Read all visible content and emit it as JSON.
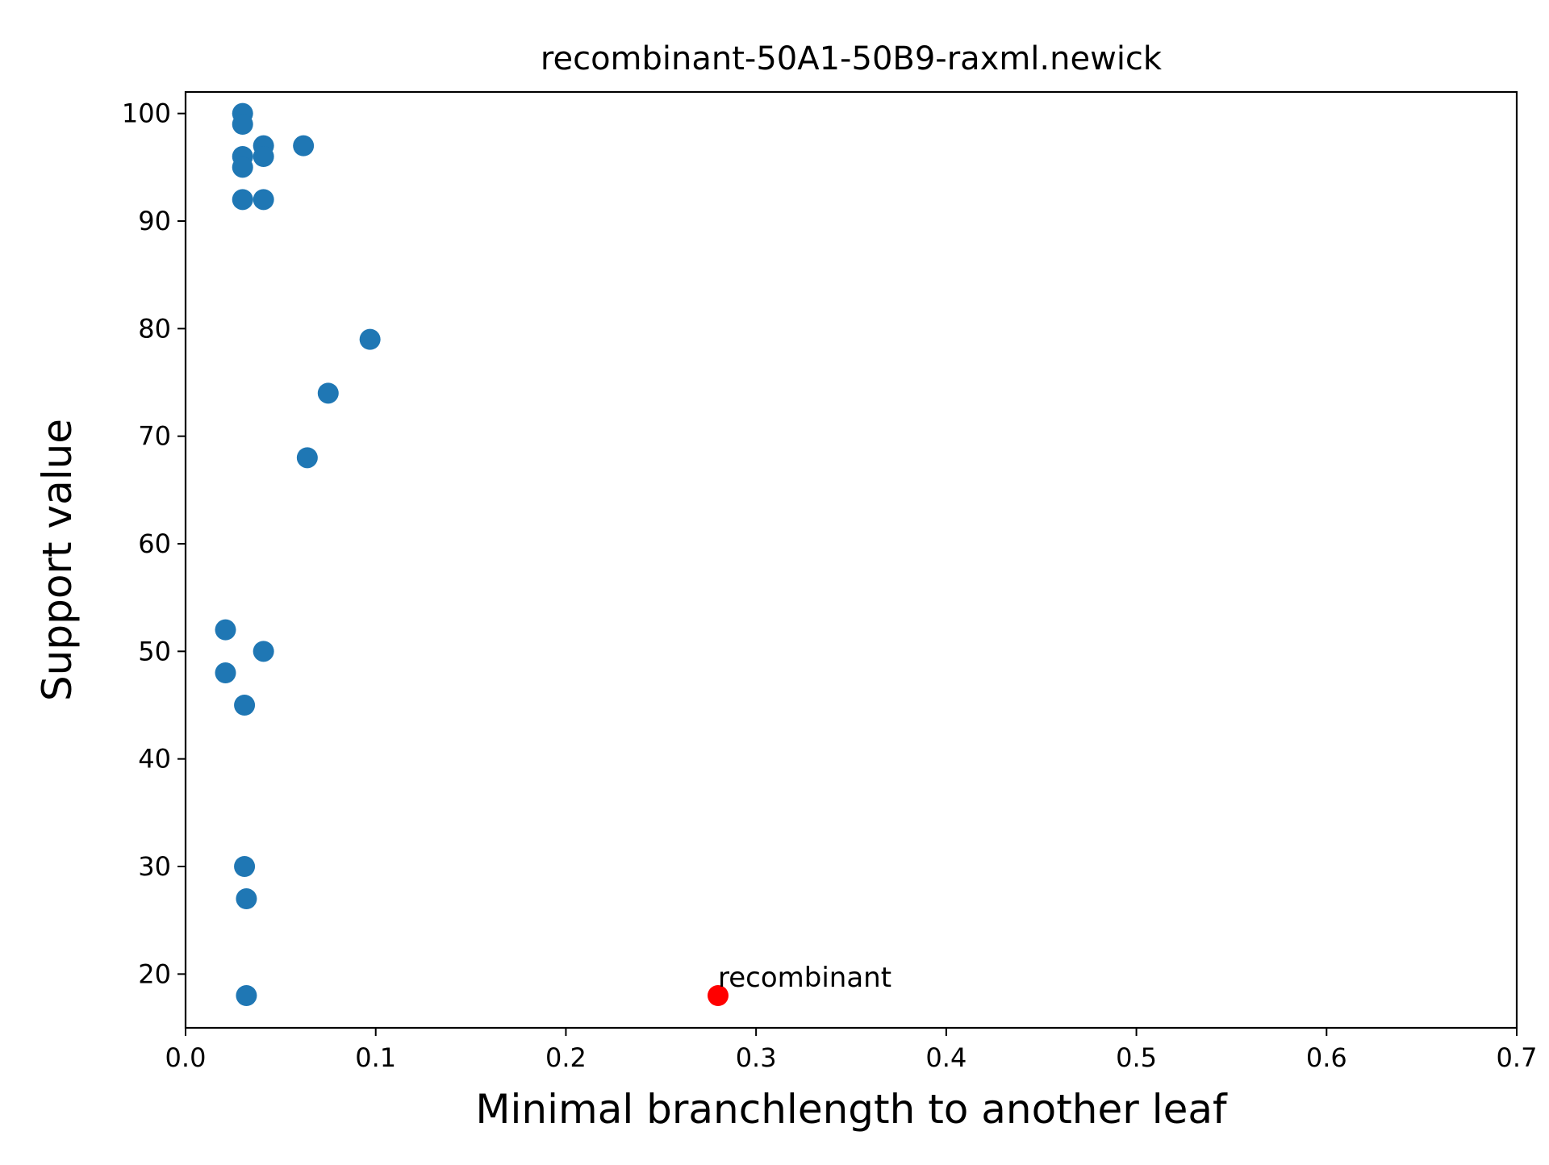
{
  "chart_data": {
    "type": "scatter",
    "title": "recombinant-50A1-50B9-raxml.newick",
    "xlabel": "Minimal branchlength to another leaf",
    "ylabel": "Support value",
    "xlim": [
      0.0,
      0.7
    ],
    "ylim": [
      15,
      102
    ],
    "xticks": [
      0.0,
      0.1,
      0.2,
      0.3,
      0.4,
      0.5,
      0.6,
      0.7
    ],
    "xtick_labels": [
      "0.0",
      "0.1",
      "0.2",
      "0.3",
      "0.4",
      "0.5",
      "0.6",
      "0.7"
    ],
    "yticks": [
      20,
      30,
      40,
      50,
      60,
      70,
      80,
      90,
      100
    ],
    "ytick_labels": [
      "20",
      "30",
      "40",
      "50",
      "60",
      "70",
      "80",
      "90",
      "100"
    ],
    "grid": false,
    "colors": {
      "points": "#1f77b4",
      "highlight": "#ff0000"
    },
    "points": [
      {
        "x": 0.03,
        "y": 100
      },
      {
        "x": 0.03,
        "y": 99
      },
      {
        "x": 0.041,
        "y": 97
      },
      {
        "x": 0.062,
        "y": 97
      },
      {
        "x": 0.03,
        "y": 96
      },
      {
        "x": 0.041,
        "y": 96
      },
      {
        "x": 0.03,
        "y": 95
      },
      {
        "x": 0.03,
        "y": 92
      },
      {
        "x": 0.041,
        "y": 92
      },
      {
        "x": 0.097,
        "y": 79
      },
      {
        "x": 0.075,
        "y": 74
      },
      {
        "x": 0.064,
        "y": 68
      },
      {
        "x": 0.021,
        "y": 52
      },
      {
        "x": 0.041,
        "y": 50
      },
      {
        "x": 0.021,
        "y": 48
      },
      {
        "x": 0.031,
        "y": 45
      },
      {
        "x": 0.031,
        "y": 30
      },
      {
        "x": 0.032,
        "y": 27
      },
      {
        "x": 0.032,
        "y": 18
      }
    ],
    "highlight": {
      "x": 0.28,
      "y": 18,
      "label": "recombinant"
    }
  }
}
